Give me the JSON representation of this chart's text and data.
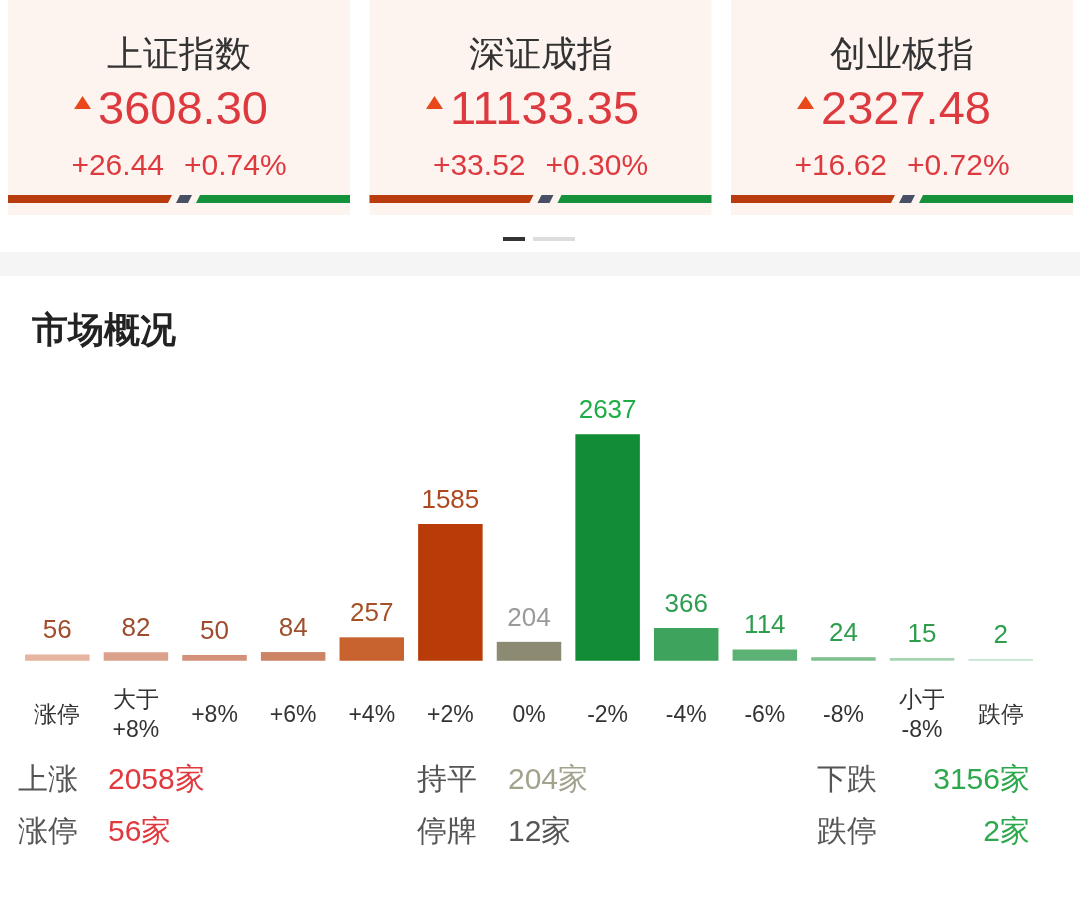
{
  "chart_data": [
    {
      "type": "other",
      "title": "上证指数",
      "annotations": [
        "3608.30",
        "+26.44",
        "+0.74%"
      ]
    },
    {
      "type": "other",
      "title": "深证成指",
      "annotations": [
        "11133.35",
        "+33.52",
        "+0.30%"
      ]
    },
    {
      "type": "other",
      "title": "创业板指",
      "annotations": [
        "2327.48",
        "+16.62",
        "+0.72%"
      ]
    },
    {
      "type": "bar",
      "title": "市场概况",
      "categories": [
        "涨停",
        "大于\n+8%",
        "+8%",
        "+6%",
        "+4%",
        "+2%",
        "0%",
        "-2%",
        "-4%",
        "-6%",
        "-8%",
        "小于\n-8%",
        "跌停"
      ],
      "values": [
        56,
        82,
        50,
        84,
        257,
        1585,
        204,
        2637,
        366,
        114,
        24,
        15,
        2
      ],
      "colors": [
        "#e6b4a0",
        "#dba08a",
        "#d4917a",
        "#cd8465",
        "#c8622f",
        "#b93c08",
        "#8c8a72",
        "#128c35",
        "#3ea35c",
        "#5cb174",
        "#7fbf91",
        "#a8d4b4",
        "#c4e3cd"
      ],
      "data_labels": true,
      "annotations": [
        "上涨",
        "2058家",
        "持平",
        "204家",
        "下跌",
        "3156家",
        "涨停",
        "56家",
        "停牌",
        "12家",
        "跌停",
        "2家"
      ]
    }
  ]
}
